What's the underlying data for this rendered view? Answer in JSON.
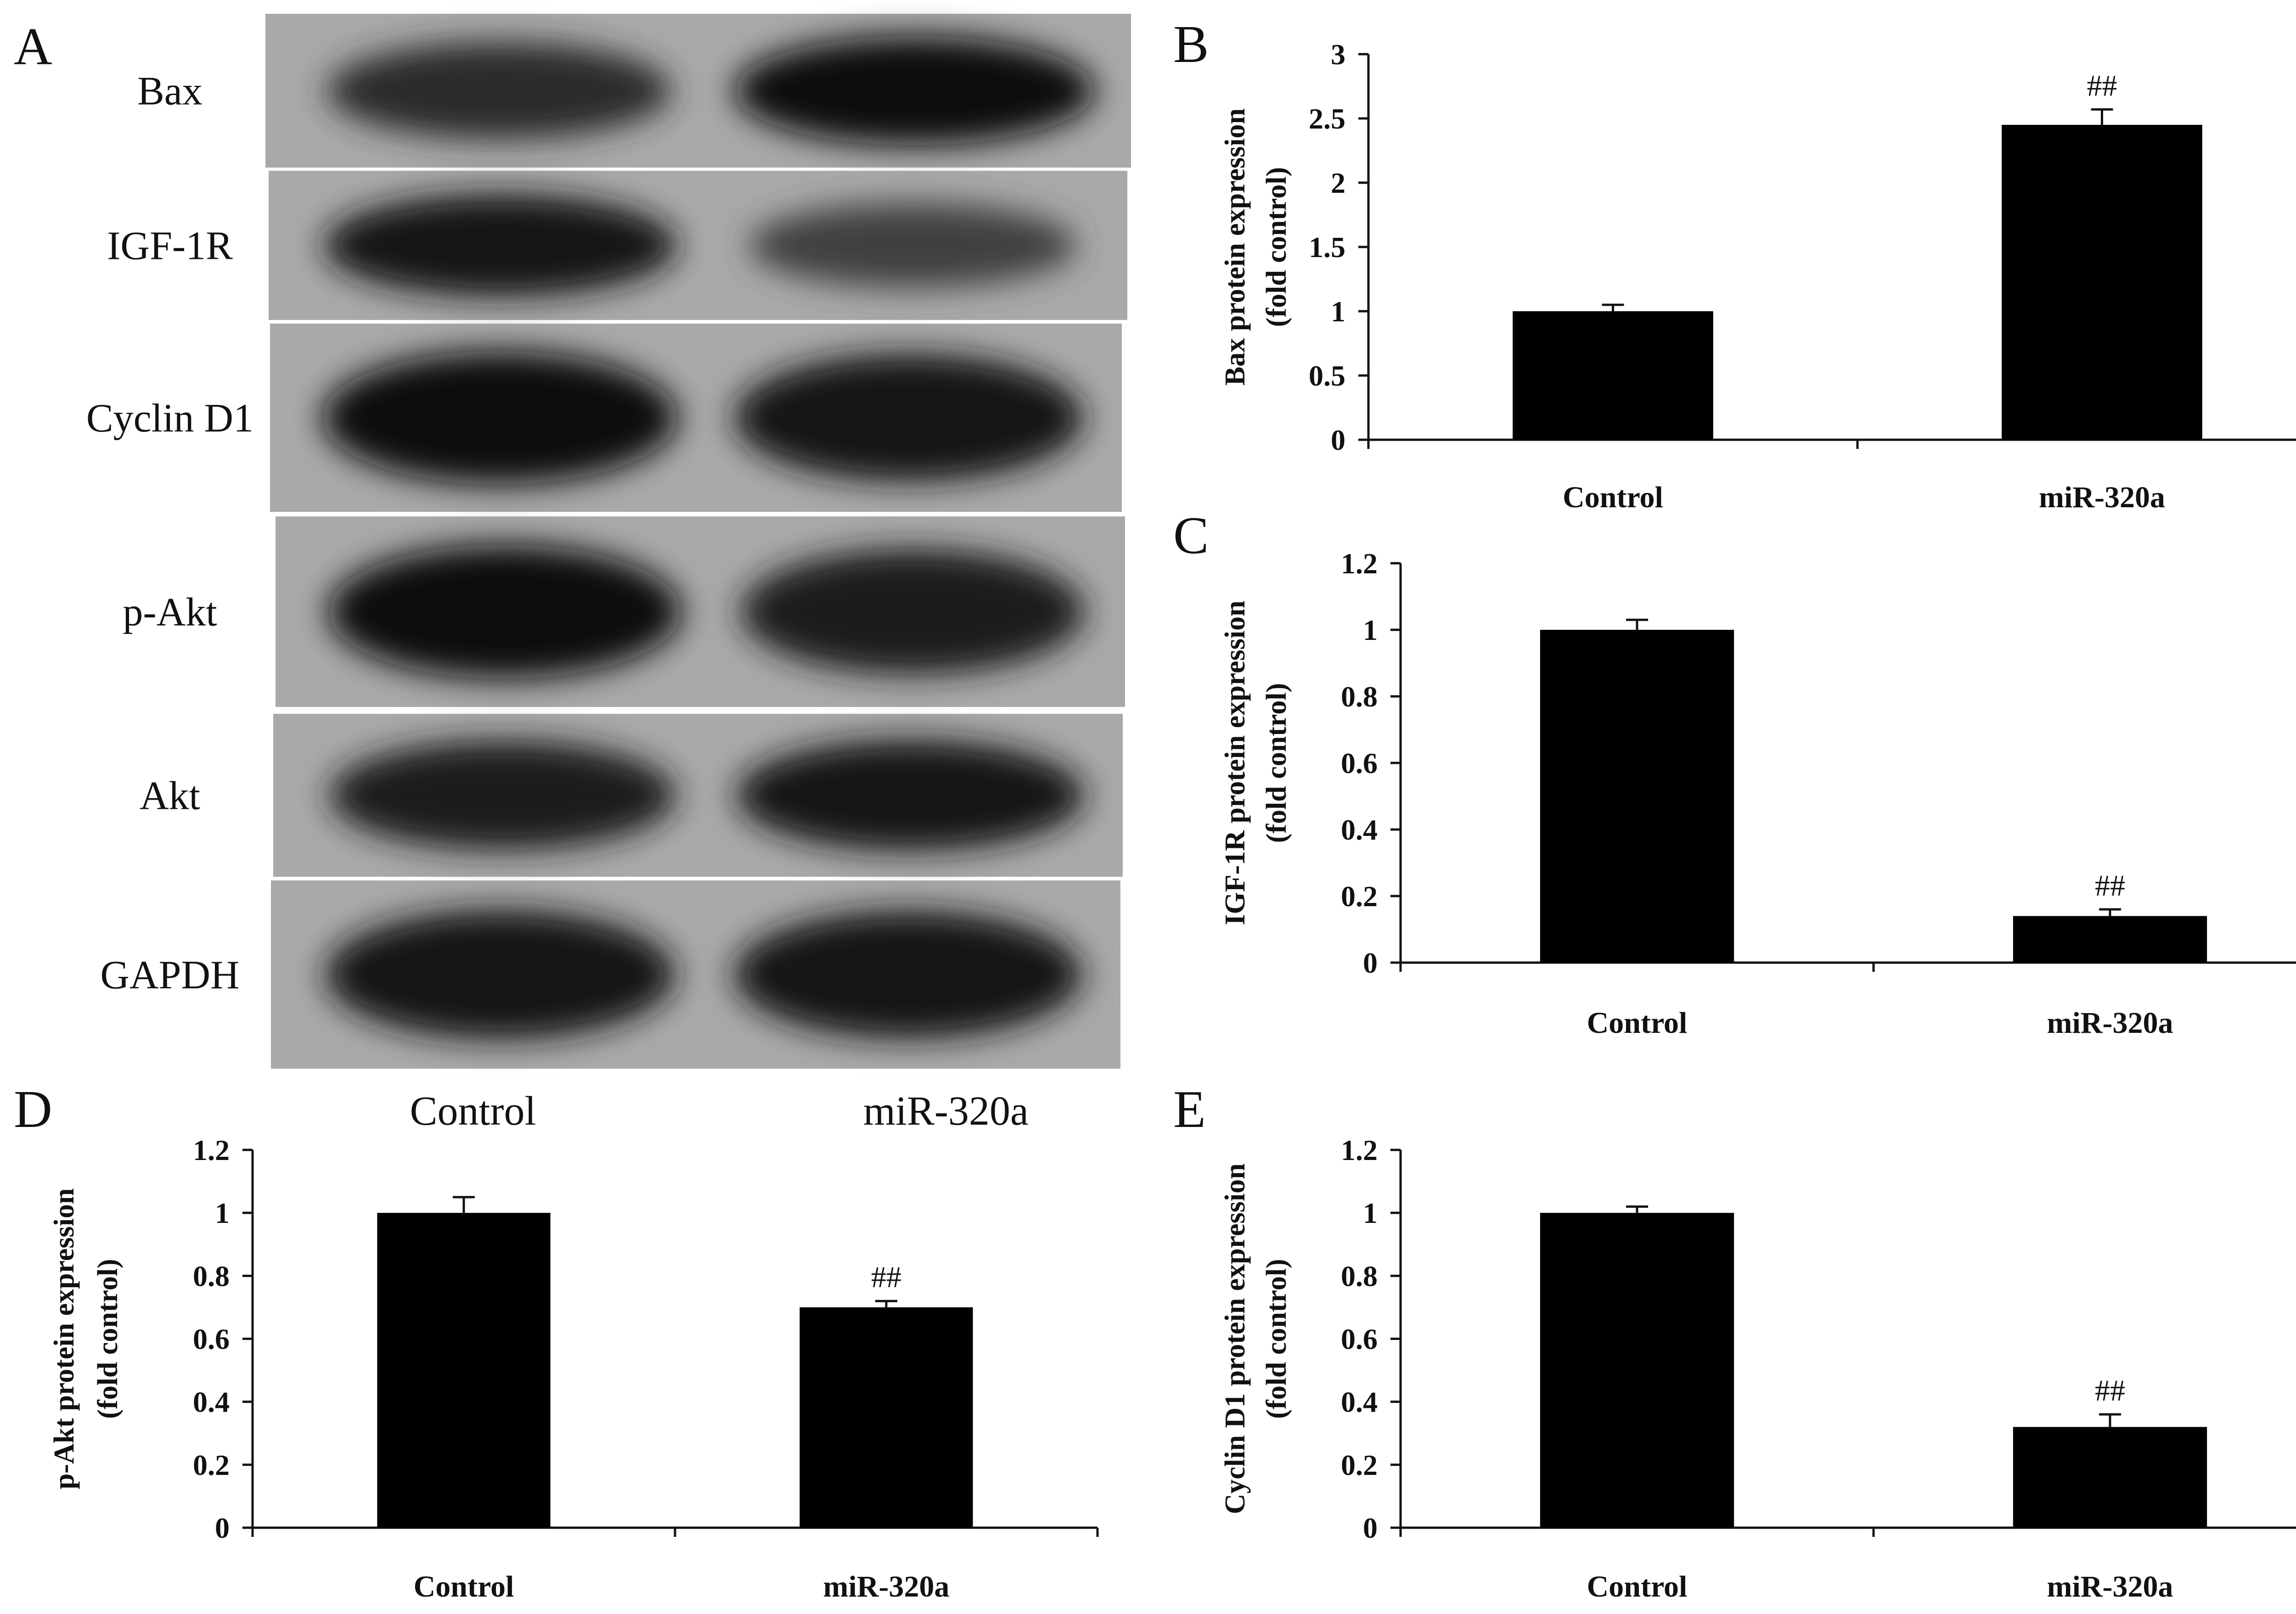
{
  "blot": {
    "panel_letter": "A",
    "rows": [
      {
        "label": "Bax",
        "intensity": [
          0.78,
          0.97
        ]
      },
      {
        "label": "IGF-1R",
        "intensity": [
          0.92,
          0.62
        ]
      },
      {
        "label": "Cyclin D1",
        "intensity": [
          0.97,
          0.9
        ]
      },
      {
        "label": "p-Akt",
        "intensity": [
          0.96,
          0.85
        ]
      },
      {
        "label": "Akt",
        "intensity": [
          0.88,
          0.9
        ]
      },
      {
        "label": "GAPDH",
        "intensity": [
          0.92,
          0.9
        ]
      }
    ],
    "lanes": [
      "Control",
      "miR-320a"
    ]
  },
  "chart_data": [
    {
      "panel_letter": "B",
      "type": "bar",
      "categories": [
        "Control",
        "miR-320a"
      ],
      "values": [
        1.0,
        2.45
      ],
      "errors": [
        0.05,
        0.12
      ],
      "significance": [
        "",
        "##"
      ],
      "ylabel_lines": [
        "Bax protein expression",
        "(fold control)"
      ],
      "ylim": [
        0,
        3
      ],
      "yticks": [
        "0",
        "0.5",
        "1",
        "1.5",
        "2",
        "2.5",
        "3"
      ],
      "bar_color": "#000000"
    },
    {
      "panel_letter": "C",
      "type": "bar",
      "categories": [
        "Control",
        "miR-320a"
      ],
      "values": [
        1.0,
        0.14
      ],
      "errors": [
        0.03,
        0.02
      ],
      "significance": [
        "",
        "##"
      ],
      "ylabel_lines": [
        "IGF-1R protein expression",
        "(fold control)"
      ],
      "ylim": [
        0,
        1.2
      ],
      "yticks": [
        "0",
        "0.2",
        "0.4",
        "0.6",
        "0.8",
        "1",
        "1.2"
      ],
      "bar_color": "#000000"
    },
    {
      "panel_letter": "D",
      "type": "bar",
      "categories": [
        "Control",
        "miR-320a"
      ],
      "values": [
        1.0,
        0.7
      ],
      "errors": [
        0.05,
        0.02
      ],
      "significance": [
        "",
        "##"
      ],
      "ylabel_lines": [
        "p-Akt protein expression",
        "(fold control)"
      ],
      "ylim": [
        0,
        1.2
      ],
      "yticks": [
        "0",
        "0.2",
        "0.4",
        "0.6",
        "0.8",
        "1",
        "1.2"
      ],
      "bar_color": "#000000"
    },
    {
      "panel_letter": "E",
      "type": "bar",
      "categories": [
        "Control",
        "miR-320a"
      ],
      "values": [
        1.0,
        0.32
      ],
      "errors": [
        0.02,
        0.04
      ],
      "significance": [
        "",
        "##"
      ],
      "ylabel_lines": [
        "Cyclin D1 protein expression",
        "(fold control)"
      ],
      "ylim": [
        0,
        1.2
      ],
      "yticks": [
        "0",
        "0.2",
        "0.4",
        "0.6",
        "0.8",
        "1",
        "1.2"
      ],
      "bar_color": "#000000"
    }
  ]
}
